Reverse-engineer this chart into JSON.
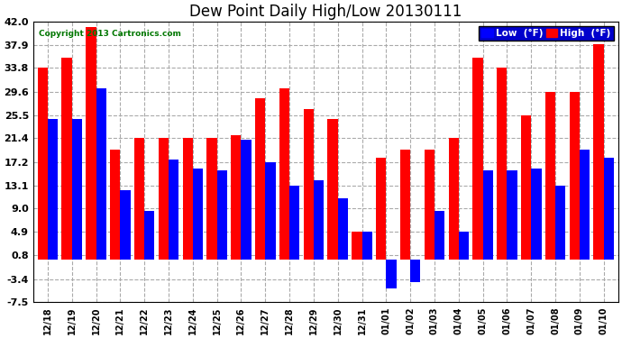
{
  "title": "Dew Point Daily High/Low 20130111",
  "copyright": "Copyright 2013 Cartronics.com",
  "categories": [
    "12/18",
    "12/19",
    "12/20",
    "12/21",
    "12/22",
    "12/23",
    "12/24",
    "12/25",
    "12/26",
    "12/27",
    "12/28",
    "12/29",
    "12/30",
    "12/31",
    "01/01",
    "01/02",
    "01/03",
    "01/04",
    "01/05",
    "01/06",
    "01/07",
    "01/08",
    "01/09",
    "01/10"
  ],
  "high_values": [
    33.8,
    35.6,
    41.0,
    19.4,
    21.4,
    21.4,
    21.4,
    21.4,
    22.0,
    28.4,
    30.2,
    26.6,
    24.8,
    5.0,
    18.0,
    19.4,
    19.4,
    21.4,
    35.6,
    33.8,
    25.5,
    29.6,
    29.6,
    38.0
  ],
  "low_values": [
    24.8,
    24.8,
    30.2,
    12.2,
    8.6,
    17.6,
    16.0,
    15.8,
    21.2,
    17.2,
    13.1,
    14.0,
    10.8,
    5.0,
    -5.0,
    -4.0,
    8.6,
    4.9,
    15.8,
    15.8,
    16.0,
    13.1,
    19.4,
    18.0
  ],
  "high_color": "#ff0000",
  "low_color": "#0000ff",
  "bg_color": "#ffffff",
  "grid_color": "#aaaaaa",
  "ylim": [
    -7.5,
    42.0
  ],
  "yticks": [
    42.0,
    37.9,
    33.8,
    29.6,
    25.5,
    21.4,
    17.2,
    13.1,
    9.0,
    4.9,
    0.8,
    -3.4,
    -7.5
  ],
  "legend_low_label": "Low  (°F)",
  "legend_high_label": "High  (°F)",
  "title_fontsize": 12,
  "label_fontsize": 7,
  "tick_fontsize": 8,
  "legend_bg": "#0000cc"
}
